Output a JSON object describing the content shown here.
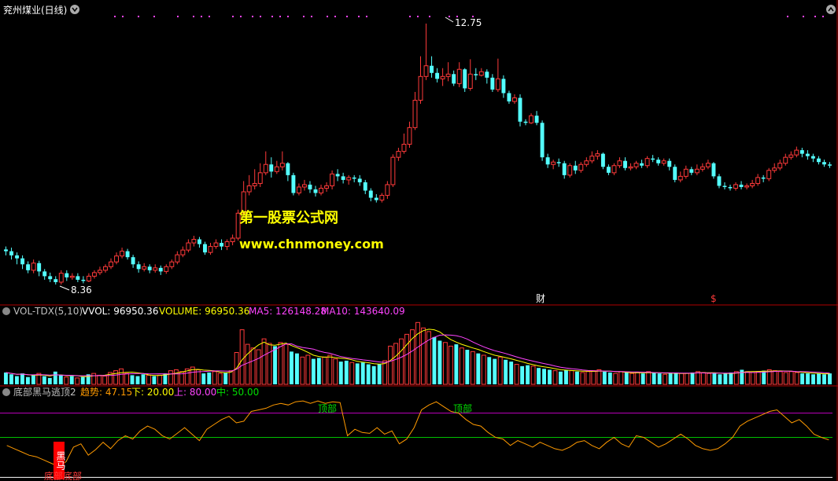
{
  "header": {
    "title": "兖州煤业(日线)"
  },
  "price_panel": {
    "high_label": "12.75",
    "low_label": "8.36",
    "markers": [
      "财",
      "$"
    ]
  },
  "volume_panel": {
    "name": "VOL-TDX(5,10)",
    "vvol": "VVOL: 96950.36",
    "volume": "VOLUME: 96950.36",
    "ma5": "MA5: 126148.28",
    "ma10": "MA10: 143640.09"
  },
  "indicator_panel": {
    "name": "底部黑马逃顶2",
    "trend": "趋势: 47.15",
    "low": "下: 20.00",
    "high": "上: 80.00",
    "mid": "中: 50.00",
    "top_label_1": "顶部",
    "top_label_2": "顶部",
    "horse_label": "黑马",
    "bottom_label": "底部底部"
  },
  "watermark": {
    "line1": "第一股票公式网",
    "line2": "www.chnmoney.com"
  },
  "colors": {
    "up": "#ff3a3a",
    "down": "#54ffff",
    "ma5": "#ffffff",
    "ma10": "#ffff00",
    "ma20": "#ff44ff",
    "trend": "#ff9a00",
    "upper_line": "#c000c0",
    "mid_line": "#00c000",
    "panel_border": "#b00000",
    "watermark": "#ffff00"
  },
  "chart_data": {
    "type": "candlestick",
    "candles": [
      [
        8.95,
        8.92,
        9.0,
        8.85
      ],
      [
        8.92,
        8.85,
        8.98,
        8.78
      ],
      [
        8.85,
        8.8,
        8.9,
        8.7
      ],
      [
        8.8,
        8.7,
        8.85,
        8.62
      ],
      [
        8.7,
        8.6,
        8.75,
        8.55
      ],
      [
        8.6,
        8.72,
        8.78,
        8.55
      ],
      [
        8.72,
        8.58,
        8.76,
        8.5
      ],
      [
        8.58,
        8.5,
        8.62,
        8.44
      ],
      [
        8.5,
        8.45,
        8.56,
        8.4
      ],
      [
        8.45,
        8.4,
        8.5,
        8.36
      ],
      [
        8.4,
        8.55,
        8.6,
        8.36
      ],
      [
        8.55,
        8.48,
        8.6,
        8.42
      ],
      [
        8.48,
        8.5,
        8.55,
        8.44
      ],
      [
        8.5,
        8.44,
        8.55,
        8.4
      ],
      [
        8.44,
        8.42,
        8.5,
        8.38
      ],
      [
        8.42,
        8.5,
        8.55,
        8.4
      ],
      [
        8.5,
        8.56,
        8.6,
        8.46
      ],
      [
        8.56,
        8.6,
        8.66,
        8.52
      ],
      [
        8.6,
        8.66,
        8.7,
        8.56
      ],
      [
        8.66,
        8.74,
        8.8,
        8.62
      ],
      [
        8.74,
        8.84,
        8.9,
        8.7
      ],
      [
        8.84,
        8.92,
        8.98,
        8.8
      ],
      [
        8.92,
        8.82,
        8.96,
        8.78
      ],
      [
        8.82,
        8.7,
        8.86,
        8.64
      ],
      [
        8.7,
        8.62,
        8.75,
        8.56
      ],
      [
        8.62,
        8.66,
        8.72,
        8.58
      ],
      [
        8.66,
        8.6,
        8.7,
        8.55
      ],
      [
        8.6,
        8.64,
        8.7,
        8.56
      ],
      [
        8.64,
        8.58,
        8.68,
        8.52
      ],
      [
        8.58,
        8.66,
        8.7,
        8.54
      ],
      [
        8.66,
        8.74,
        8.78,
        8.62
      ],
      [
        8.74,
        8.86,
        8.92,
        8.7
      ],
      [
        8.86,
        8.94,
        9.0,
        8.82
      ],
      [
        8.94,
        9.06,
        9.12,
        8.9
      ],
      [
        9.06,
        9.12,
        9.18,
        9.0
      ],
      [
        9.12,
        9.04,
        9.16,
        8.98
      ],
      [
        9.04,
        8.9,
        9.08,
        8.86
      ],
      [
        8.9,
        9.0,
        9.06,
        8.86
      ],
      [
        9.0,
        9.06,
        9.12,
        8.96
      ],
      [
        9.06,
        9.0,
        9.12,
        8.94
      ],
      [
        9.0,
        9.08,
        9.12,
        8.94
      ],
      [
        9.08,
        9.14,
        9.2,
        9.02
      ],
      [
        9.14,
        9.56,
        9.62,
        9.1
      ],
      [
        9.56,
        9.92,
        10.1,
        9.5
      ],
      [
        9.92,
        10.02,
        10.2,
        9.86
      ],
      [
        10.02,
        10.06,
        10.3,
        9.96
      ],
      [
        10.06,
        10.24,
        10.4,
        10.0
      ],
      [
        10.24,
        10.38,
        10.6,
        10.2
      ],
      [
        10.38,
        10.26,
        10.5,
        10.16
      ],
      [
        10.26,
        10.34,
        10.44,
        10.22
      ],
      [
        10.34,
        10.4,
        10.6,
        10.28
      ],
      [
        10.4,
        10.2,
        10.42,
        10.1
      ],
      [
        10.2,
        9.9,
        10.24,
        9.86
      ],
      [
        9.9,
        10.0,
        10.06,
        9.86
      ],
      [
        10.0,
        10.04,
        10.12,
        9.94
      ],
      [
        10.04,
        9.96,
        10.1,
        9.9
      ],
      [
        9.96,
        9.9,
        10.02,
        9.84
      ],
      [
        9.9,
        9.98,
        10.04,
        9.86
      ],
      [
        9.98,
        10.02,
        10.08,
        9.92
      ],
      [
        10.02,
        10.22,
        10.28,
        9.96
      ],
      [
        10.22,
        10.18,
        10.3,
        10.1
      ],
      [
        10.18,
        10.12,
        10.24,
        10.06
      ],
      [
        10.12,
        10.16,
        10.2,
        10.04
      ],
      [
        10.16,
        10.14,
        10.2,
        10.08
      ],
      [
        10.14,
        10.08,
        10.2,
        10.02
      ],
      [
        10.08,
        9.94,
        10.12,
        9.88
      ],
      [
        9.94,
        9.82,
        9.98,
        9.76
      ],
      [
        9.82,
        9.78,
        9.88,
        9.74
      ],
      [
        9.78,
        9.86,
        9.9,
        9.74
      ],
      [
        9.86,
        10.04,
        10.1,
        9.8
      ],
      [
        10.04,
        10.5,
        10.55,
        10.0
      ],
      [
        10.5,
        10.6,
        10.66,
        10.44
      ],
      [
        10.6,
        10.72,
        10.9,
        10.56
      ],
      [
        10.72,
        11.0,
        11.1,
        10.66
      ],
      [
        11.0,
        11.46,
        11.6,
        10.96
      ],
      [
        11.46,
        11.86,
        12.2,
        11.4
      ],
      [
        11.86,
        12.04,
        12.75,
        11.8
      ],
      [
        12.04,
        11.92,
        12.2,
        11.84
      ],
      [
        11.92,
        11.82,
        12.0,
        11.76
      ],
      [
        11.82,
        11.86,
        12.0,
        11.7
      ],
      [
        11.86,
        11.9,
        12.1,
        11.78
      ],
      [
        11.9,
        11.74,
        11.96,
        11.7
      ],
      [
        11.74,
        11.98,
        12.1,
        11.68
      ],
      [
        11.98,
        11.66,
        12.0,
        11.6
      ],
      [
        11.66,
        11.9,
        12.15,
        11.62
      ],
      [
        11.9,
        11.88,
        12.0,
        11.8
      ],
      [
        11.88,
        11.94,
        12.0,
        11.86
      ],
      [
        11.94,
        11.84,
        11.98,
        11.74
      ],
      [
        11.84,
        11.64,
        11.9,
        11.6
      ],
      [
        11.64,
        11.82,
        12.16,
        11.6
      ],
      [
        11.82,
        11.58,
        11.88,
        11.5
      ],
      [
        11.58,
        11.44,
        11.62,
        11.4
      ],
      [
        11.44,
        11.5,
        11.56,
        11.4
      ],
      [
        11.5,
        11.1,
        11.56,
        11.02
      ],
      [
        11.1,
        11.08,
        11.14,
        11.04
      ],
      [
        11.08,
        11.2,
        11.24,
        11.06
      ],
      [
        11.2,
        11.08,
        11.28,
        11.04
      ],
      [
        11.08,
        10.5,
        11.12,
        10.44
      ],
      [
        10.5,
        10.38,
        10.56,
        10.32
      ],
      [
        10.38,
        10.42,
        10.46,
        10.3
      ],
      [
        10.42,
        10.4,
        10.48,
        10.34
      ],
      [
        10.4,
        10.2,
        10.44,
        10.14
      ],
      [
        10.2,
        10.36,
        10.4,
        10.16
      ],
      [
        10.36,
        10.28,
        10.44,
        10.22
      ],
      [
        10.28,
        10.38,
        10.42,
        10.24
      ],
      [
        10.38,
        10.44,
        10.5,
        10.34
      ],
      [
        10.44,
        10.52,
        10.6,
        10.4
      ],
      [
        10.52,
        10.56,
        10.62,
        10.46
      ],
      [
        10.56,
        10.34,
        10.58,
        10.3
      ],
      [
        10.34,
        10.24,
        10.38,
        10.2
      ],
      [
        10.24,
        10.36,
        10.4,
        10.2
      ],
      [
        10.36,
        10.44,
        10.5,
        10.32
      ],
      [
        10.44,
        10.32,
        10.5,
        10.28
      ],
      [
        10.32,
        10.34,
        10.4,
        10.28
      ],
      [
        10.34,
        10.4,
        10.44,
        10.3
      ],
      [
        10.4,
        10.36,
        10.46,
        10.32
      ],
      [
        10.36,
        10.48,
        10.52,
        10.32
      ],
      [
        10.48,
        10.46,
        10.54,
        10.42
      ],
      [
        10.46,
        10.4,
        10.5,
        10.36
      ],
      [
        10.4,
        10.44,
        10.48,
        10.36
      ],
      [
        10.44,
        10.34,
        10.48,
        10.28
      ],
      [
        10.34,
        10.12,
        10.38,
        10.08
      ],
      [
        10.12,
        10.18,
        10.26,
        10.08
      ],
      [
        10.18,
        10.3,
        10.36,
        10.14
      ],
      [
        10.3,
        10.24,
        10.34,
        10.2
      ],
      [
        10.24,
        10.3,
        10.38,
        10.2
      ],
      [
        10.3,
        10.34,
        10.4,
        10.26
      ],
      [
        10.34,
        10.4,
        10.46,
        10.3
      ],
      [
        10.4,
        10.18,
        10.42,
        10.14
      ],
      [
        10.18,
        10.02,
        10.22,
        9.98
      ],
      [
        10.02,
        10.0,
        10.08,
        9.96
      ],
      [
        10.0,
        9.98,
        10.04,
        9.94
      ],
      [
        9.98,
        10.04,
        10.08,
        9.94
      ],
      [
        10.04,
        10.0,
        10.1,
        9.96
      ],
      [
        10.0,
        10.02,
        10.06,
        9.96
      ],
      [
        10.02,
        10.06,
        10.12,
        9.98
      ],
      [
        10.06,
        10.16,
        10.22,
        10.02
      ],
      [
        10.16,
        10.14,
        10.2,
        10.08
      ],
      [
        10.14,
        10.28,
        10.32,
        10.1
      ],
      [
        10.28,
        10.32,
        10.4,
        10.24
      ],
      [
        10.32,
        10.4,
        10.46,
        10.28
      ],
      [
        10.4,
        10.5,
        10.56,
        10.36
      ],
      [
        10.5,
        10.54,
        10.6,
        10.46
      ],
      [
        10.54,
        10.62,
        10.68,
        10.5
      ],
      [
        10.62,
        10.56,
        10.66,
        10.5
      ],
      [
        10.56,
        10.52,
        10.62,
        10.46
      ],
      [
        10.52,
        10.48,
        10.56,
        10.42
      ],
      [
        10.48,
        10.42,
        10.52,
        10.38
      ],
      [
        10.42,
        10.38,
        10.46,
        10.34
      ],
      [
        10.38,
        10.36,
        10.42,
        10.32
      ]
    ],
    "volume": [
      13,
      11,
      9,
      12,
      8,
      10,
      12,
      9,
      7,
      14,
      10,
      8,
      9,
      7,
      8,
      11,
      12,
      10,
      9,
      13,
      15,
      17,
      12,
      10,
      9,
      11,
      10,
      9,
      10,
      12,
      15,
      16,
      14,
      17,
      19,
      16,
      12,
      13,
      14,
      12,
      13,
      15,
      35,
      60,
      44,
      40,
      38,
      50,
      45,
      42,
      46,
      44,
      36,
      34,
      30,
      32,
      28,
      29,
      30,
      32,
      28,
      25,
      26,
      24,
      23,
      24,
      22,
      20,
      22,
      26,
      42,
      45,
      50,
      55,
      60,
      68,
      62,
      58,
      52,
      48,
      46,
      42,
      44,
      40,
      38,
      36,
      34,
      32,
      30,
      28,
      30,
      27,
      25,
      22,
      20,
      21,
      20,
      18,
      17,
      16,
      15,
      14,
      16,
      15,
      14,
      13,
      14,
      15,
      16,
      14,
      13,
      12,
      14,
      13,
      12,
      13,
      12,
      14,
      13,
      12,
      11,
      12,
      13,
      12,
      12,
      13,
      14,
      13,
      12,
      12,
      11,
      12,
      13,
      14,
      16,
      14,
      13,
      14,
      15,
      16,
      15,
      14,
      13,
      14,
      13,
      12,
      12,
      11,
      12,
      11,
      12
    ],
    "trend": [
      40,
      36,
      32,
      28,
      26,
      22,
      18,
      14,
      20,
      38,
      42,
      28,
      35,
      44,
      36,
      46,
      52,
      48,
      58,
      64,
      60,
      52,
      48,
      55,
      62,
      54,
      46,
      60,
      66,
      72,
      76,
      68,
      70,
      82,
      84,
      86,
      90,
      92,
      90,
      94,
      95,
      92,
      95,
      92,
      94,
      93,
      52,
      60,
      56,
      55,
      62,
      54,
      58,
      42,
      48,
      62,
      84,
      90,
      94,
      88,
      82,
      80,
      72,
      66,
      64,
      56,
      50,
      48,
      40,
      46,
      42,
      38,
      44,
      40,
      36,
      34,
      38,
      44,
      46,
      40,
      36,
      44,
      50,
      42,
      38,
      52,
      50,
      44,
      38,
      42,
      48,
      54,
      48,
      40,
      36,
      34,
      36,
      42,
      50,
      64,
      70,
      74,
      78,
      82,
      84,
      76,
      68,
      72,
      64,
      54,
      50,
      47
    ],
    "levels": {
      "upper": 80,
      "mid": 50,
      "lower": 20
    }
  }
}
